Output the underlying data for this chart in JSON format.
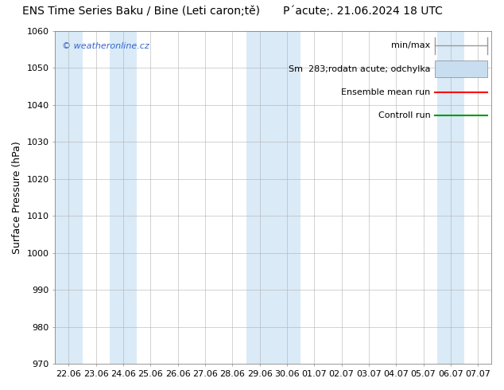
{
  "title_left": "ENS Time Series Baku / Bine (Leti caron;tě)",
  "title_right": "P´acute;. 21.06.2024 18 UTC",
  "ylabel": "Surface Pressure (hPa)",
  "ylim": [
    970,
    1060
  ],
  "yticks": [
    970,
    980,
    990,
    1000,
    1010,
    1020,
    1030,
    1040,
    1050,
    1060
  ],
  "xtick_labels": [
    "22.06",
    "23.06",
    "24.06",
    "25.06",
    "26.06",
    "27.06",
    "28.06",
    "29.06",
    "30.06",
    "01.07",
    "02.07",
    "03.07",
    "04.07",
    "05.07",
    "06.07",
    "07.07"
  ],
  "background_color": "#ffffff",
  "band_color": "#daeaf7",
  "shaded_indices": [
    0,
    2,
    7,
    8,
    14
  ],
  "watermark": "© weatheronline.cz",
  "legend_minmax_color": "#999999",
  "legend_spread_color": "#c8ddf0",
  "legend_mean_color": "#ff0000",
  "legend_control_color": "#009900",
  "title_fontsize": 10,
  "axis_label_fontsize": 9,
  "tick_fontsize": 8,
  "legend_fontsize": 8
}
